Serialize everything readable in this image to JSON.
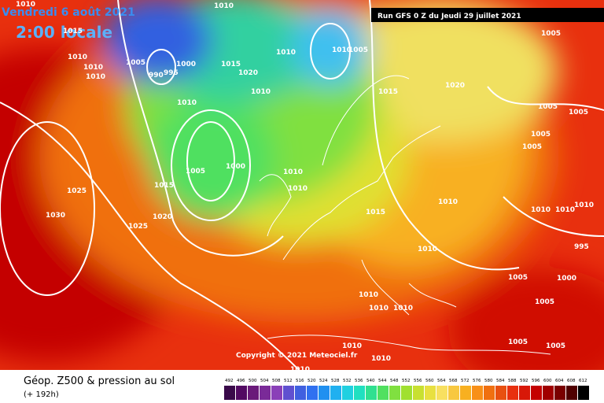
{
  "header": {
    "date": "Vendredi 6 août 2021",
    "time": "2:00 locale",
    "run": "Run GFS 0 Z du Jeudi 29 juillet 2021"
  },
  "copyright": "Copyright © 2021 Meteociel.fr",
  "legend": {
    "title": "Géop. Z500 & pression au sol",
    "lead": "(+ 192h)",
    "scale": [
      492,
      496,
      500,
      504,
      508,
      512,
      516,
      520,
      524,
      528,
      532,
      536,
      540,
      544,
      548,
      552,
      556,
      560,
      564,
      568,
      572,
      576,
      580,
      584,
      588,
      592,
      596,
      600,
      604,
      608,
      612
    ]
  },
  "isobar_labels": [
    1010,
    1010,
    1015,
    1010,
    1005,
    1010,
    1010,
    1000,
    990,
    995,
    1015,
    1020,
    1010,
    1010,
    1005,
    1010,
    1010,
    1015,
    1020,
    1005,
    1005,
    1005,
    1005,
    1005,
    1005,
    1000,
    1010,
    1010,
    1015,
    1025,
    1030,
    1020,
    1025,
    1015,
    1010,
    1010,
    1010,
    1010,
    995,
    1010,
    1005,
    1000,
    1010,
    1010,
    1010,
    1005,
    1005,
    1005,
    1010,
    1010,
    1010
  ]
}
